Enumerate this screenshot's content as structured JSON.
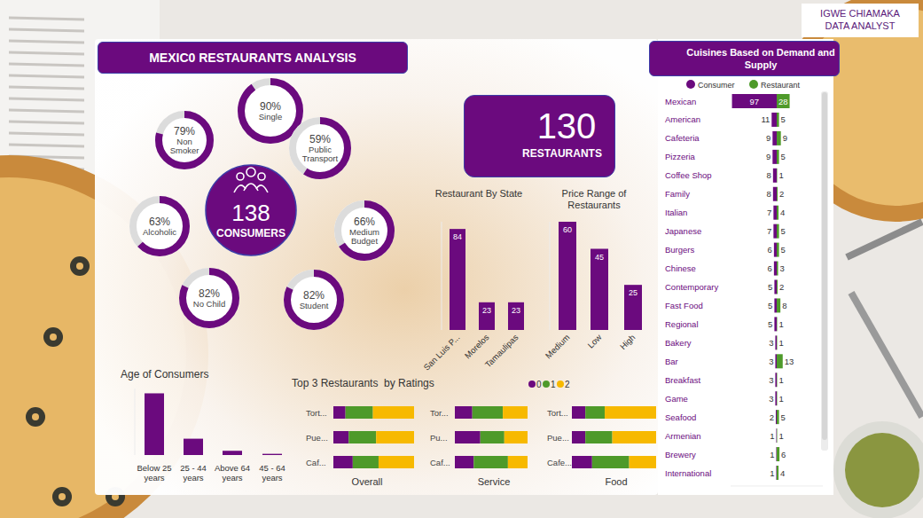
{
  "header": {
    "title": "MEXIC0 RESTAURANTS ANALYSIS",
    "author": "IGWE CHIAMAKA",
    "role": "DATA ANALYST"
  },
  "consumers": {
    "value": 138,
    "label": "CONSUMERS"
  },
  "restaurants": {
    "value": 130,
    "label": "RESTAURANTS"
  },
  "consumer_profile": [
    {
      "label": "Single",
      "value": 90,
      "value_label": "90%"
    },
    {
      "label": "Non Smoker",
      "value": 79,
      "value_label": "79%"
    },
    {
      "label": "Public Transport",
      "value": 59,
      "value_label": "59%"
    },
    {
      "label": "Alcoholic",
      "value": 63,
      "value_label": "63%"
    },
    {
      "label": "Medium Budget",
      "value": 66,
      "value_label": "66%"
    },
    {
      "label": "No Child",
      "value": 82,
      "value_label": "82%"
    },
    {
      "label": "Student",
      "value": 82,
      "value_label": "82%"
    }
  ],
  "chart_data": [
    {
      "type": "bar",
      "title": "Restaurant By State",
      "categories": [
        "San Luis P...",
        "Morelos",
        "Tamaulipas"
      ],
      "values": [
        84,
        23,
        23
      ],
      "color": "#6b0a7e",
      "ylim": [
        0,
        90
      ],
      "data_labels": true,
      "tick_labels": "x"
    },
    {
      "type": "bar",
      "title": "Price Range of Restaurants",
      "categories": [
        "Medium",
        "Low",
        "High"
      ],
      "values": [
        60,
        45,
        25
      ],
      "color": "#6b0a7e",
      "ylim": [
        0,
        60
      ],
      "data_labels": true,
      "tick_labels": "x"
    },
    {
      "type": "bar",
      "title": "Age of Consumers",
      "categories": [
        "Below 25 years",
        "25 - 44 years",
        "Above 64 years",
        "45 - 64 years"
      ],
      "values": [
        102,
        27,
        7,
        2
      ],
      "color": "#6b0a7e",
      "ylim": [
        0,
        110
      ],
      "data_labels": false,
      "tick_labels": "x"
    },
    {
      "type": "bar",
      "title": "Top 3 Restaurants  by Ratings",
      "orientation": "horizontal",
      "stacked": true,
      "legend": "top-right",
      "xlim": [
        0,
        100
      ],
      "tick_labels": "y",
      "series": [
        {
          "name": "0",
          "color": "#6b0a7e"
        },
        {
          "name": "1",
          "color": "#4e9a2a"
        },
        {
          "name": "2",
          "color": "#f7b900"
        }
      ],
      "panels": [
        {
          "xlabel": "Overall",
          "categories": [
            "Tort...",
            "Pue...",
            "Caf..."
          ],
          "values": [
            [
              15,
              34,
              51
            ],
            [
              19,
              34,
              47
            ],
            [
              24,
              32,
              44
            ]
          ]
        },
        {
          "xlabel": "Service",
          "categories": [
            "Tor...",
            "Pu...",
            "Caf..."
          ],
          "values": [
            [
              24,
              42,
              34
            ],
            [
              35,
              33,
              32
            ],
            [
              26,
              47,
              27
            ]
          ]
        },
        {
          "xlabel": "Food",
          "categories": [
            "Tort...",
            "Pue...",
            "Cafe..."
          ],
          "values": [
            [
              16,
              23,
              61
            ],
            [
              16,
              32,
              52
            ],
            [
              24,
              44,
              32
            ]
          ]
        }
      ]
    },
    {
      "type": "bar",
      "title": "Cuisines Based on Demand and Supply",
      "orientation": "horizontal",
      "legend": "top",
      "data_labels": true,
      "tick_labels": "y",
      "xlim": [
        0,
        100
      ],
      "categories": [
        "Mexican",
        "American",
        "Cafeteria",
        "Pizzeria",
        "Coffee Shop",
        "Family",
        "Italian",
        "Japanese",
        "Burgers",
        "Chinese",
        "Contemporary",
        "Fast Food",
        "Regional",
        "Bakery",
        "Bar",
        "Breakfast",
        "Game",
        "Seafood",
        "Armenian",
        "Brewery",
        "International"
      ],
      "series": [
        {
          "name": "Consumer",
          "color": "#6b0a7e",
          "values": [
            97,
            11,
            9,
            9,
            8,
            8,
            7,
            7,
            6,
            6,
            5,
            5,
            5,
            3,
            3,
            3,
            3,
            2,
            1,
            1,
            1
          ]
        },
        {
          "name": "Restaurant",
          "color": "#4e9a2a",
          "values": [
            28,
            5,
            9,
            5,
            1,
            2,
            4,
            5,
            5,
            3,
            2,
            8,
            1,
            1,
            13,
            1,
            1,
            5,
            1,
            6,
            4
          ]
        }
      ]
    }
  ]
}
